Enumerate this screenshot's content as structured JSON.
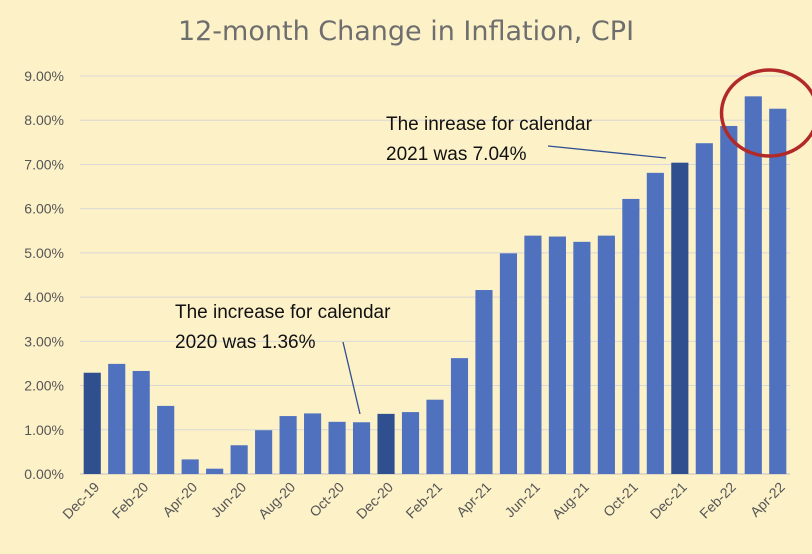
{
  "chart_data": {
    "type": "bar",
    "title": "12-month Change in Inflation, CPI",
    "xlabel": "",
    "ylabel": "",
    "ylim": [
      0,
      9
    ],
    "y_ticks": [
      "0.00%",
      "1.00%",
      "2.00%",
      "3.00%",
      "4.00%",
      "5.00%",
      "6.00%",
      "7.00%",
      "8.00%",
      "9.00%"
    ],
    "x_tick_labels": [
      "Dec-19",
      "Feb-20",
      "Apr-20",
      "Jun-20",
      "Aug-20",
      "Oct-20",
      "Dec-20",
      "Feb-21",
      "Apr-21",
      "Jun-21",
      "Aug-21",
      "Oct-21",
      "Dec-21",
      "Feb-22",
      "Apr-22"
    ],
    "categories": [
      "Dec-19",
      "Jan-20",
      "Feb-20",
      "Mar-20",
      "Apr-20",
      "May-20",
      "Jun-20",
      "Jul-20",
      "Aug-20",
      "Sep-20",
      "Oct-20",
      "Nov-20",
      "Dec-20",
      "Jan-21",
      "Feb-21",
      "Mar-21",
      "Apr-21",
      "May-21",
      "Jun-21",
      "Jul-21",
      "Aug-21",
      "Sep-21",
      "Oct-21",
      "Nov-21",
      "Dec-21",
      "Jan-22",
      "Feb-22",
      "Mar-22",
      "Apr-22"
    ],
    "values": [
      2.29,
      2.49,
      2.33,
      1.54,
      0.33,
      0.12,
      0.65,
      0.99,
      1.31,
      1.37,
      1.18,
      1.17,
      1.36,
      1.4,
      1.68,
      2.62,
      4.16,
      4.99,
      5.39,
      5.37,
      5.25,
      5.39,
      6.22,
      6.81,
      7.04,
      7.48,
      7.87,
      8.54,
      8.26
    ],
    "highlighted": [
      "Dec-19",
      "Dec-20",
      "Dec-21"
    ],
    "grid": true,
    "colors": {
      "bar": "#4f71be",
      "bar_highlight": "#2f4f8f",
      "background": "#fdf1c8",
      "circle": "#b22a28",
      "grid": "#d8d8d8"
    },
    "annotations": [
      {
        "line1": "The increase for calendar",
        "line2": "2020 was 1.36%",
        "target": "Dec-20"
      },
      {
        "line1": "The inrease for calendar",
        "line2": "2021 was 7.04%",
        "target": "Dec-21"
      }
    ],
    "circled": [
      "Mar-22",
      "Apr-22"
    ]
  }
}
